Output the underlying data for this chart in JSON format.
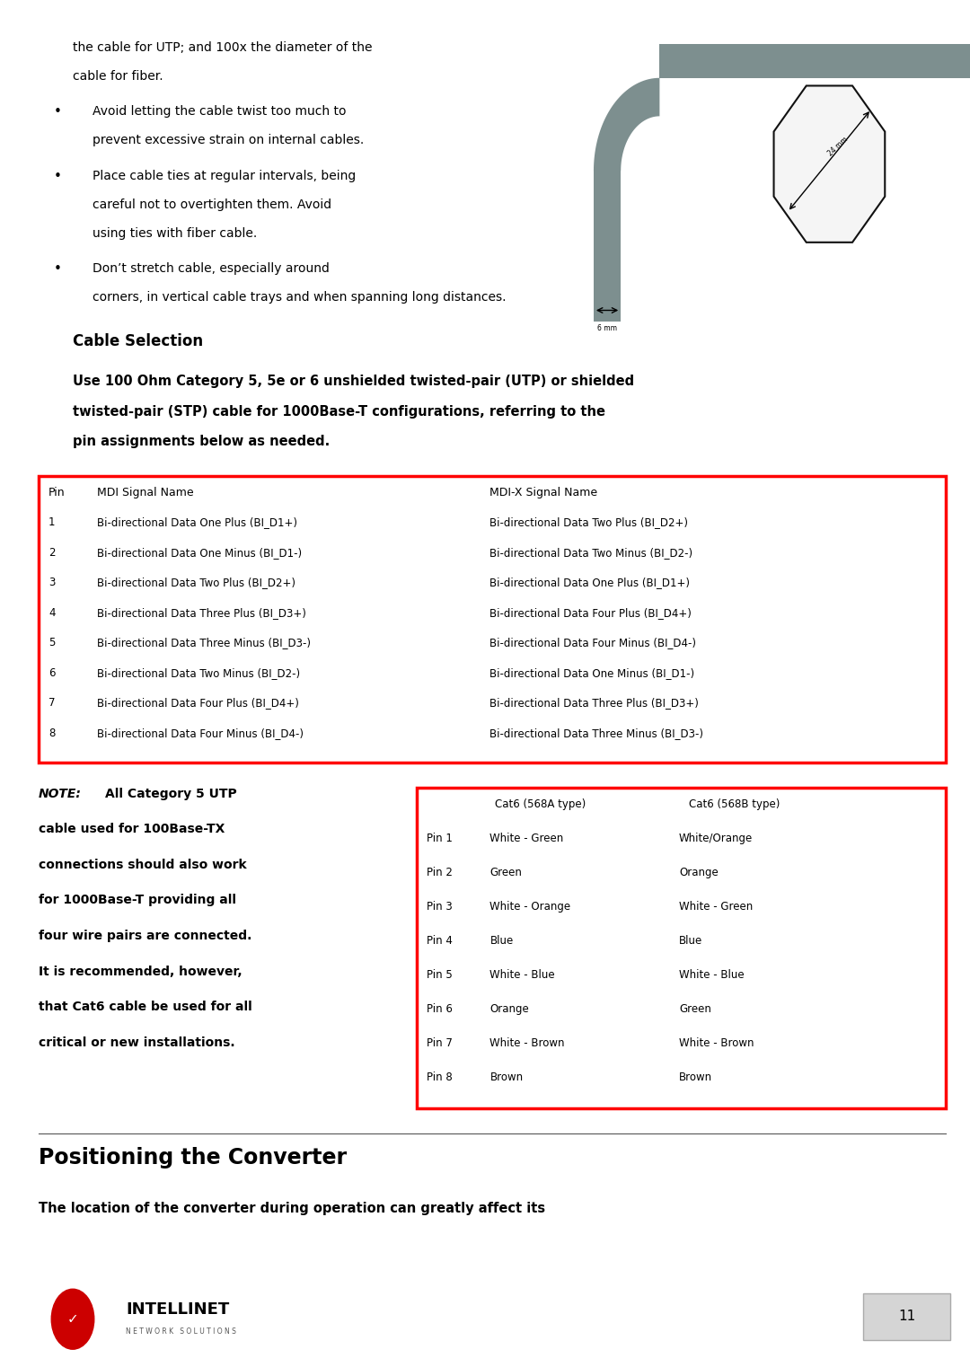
{
  "bg_color": "#ffffff",
  "page_width": 10.8,
  "page_height": 15.22,
  "top_text_line1": "the cable for UTP; and 100x the diameter of the",
  "top_text_line2": "cable for fiber.",
  "bullets": [
    [
      "Avoid letting the cable twist too much to",
      "prevent excessive strain on internal cables."
    ],
    [
      "Place cable ties at regular intervals, being",
      "careful not to overtighten them. Avoid",
      "using ties with fiber cable."
    ],
    [
      "Don’t stretch cable, especially around",
      "corners, in vertical cable trays and when spanning long distances."
    ]
  ],
  "cable_section_title": "Cable Selection",
  "cable_section_body_lines": [
    "Use 100 Ohm Category 5, 5e or 6 unshielded twisted-pair (UTP) or shielded",
    "twisted-pair (STP) cable for 1000Base-T configurations, referring to the",
    "pin assignments below as needed."
  ],
  "mdi_table_header": [
    "Pin",
    "MDI Signal Name",
    "MDI-X Signal Name"
  ],
  "mdi_table_rows": [
    [
      "1",
      "Bi-directional Data One Plus (BI_D1+)",
      "Bi-directional Data Two Plus (BI_D2+)"
    ],
    [
      "2",
      "Bi-directional Data One Minus (BI_D1-)",
      "Bi-directional Data Two Minus (BI_D2-)"
    ],
    [
      "3",
      "Bi-directional Data Two Plus (BI_D2+)",
      "Bi-directional Data One Plus (BI_D1+)"
    ],
    [
      "4",
      "Bi-directional Data Three Plus (BI_D3+)",
      "Bi-directional Data Four Plus (BI_D4+)"
    ],
    [
      "5",
      "Bi-directional Data Three Minus (BI_D3-)",
      "Bi-directional Data Four Minus (BI_D4-)"
    ],
    [
      "6",
      "Bi-directional Data Two Minus (BI_D2-)",
      "Bi-directional Data One Minus (BI_D1-)"
    ],
    [
      "7",
      "Bi-directional Data Four Plus (BI_D4+)",
      "Bi-directional Data Three Plus (BI_D3+)"
    ],
    [
      "8",
      "Bi-directional Data Four Minus (BI_D4-)",
      "Bi-directional Data Three Minus (BI_D3-)"
    ]
  ],
  "note_lines": [
    "All Category 5 UTP",
    "cable used for 100Base-TX",
    "connections should also work",
    "for 1000Base-T providing all",
    "four wire pairs are connected.",
    "It is recommended, however,",
    "that Cat6 cable be used for all",
    "critical or new installations."
  ],
  "cat6_header": [
    "Cat6 (568A type)",
    "Cat6 (568B type)"
  ],
  "cat6_rows": [
    [
      "Pin 1",
      "White - Green",
      "White/Orange"
    ],
    [
      "Pin 2",
      "Green",
      "Orange"
    ],
    [
      "Pin 3",
      "White - Orange",
      "White - Green"
    ],
    [
      "Pin 4",
      "Blue",
      "Blue"
    ],
    [
      "Pin 5",
      "White - Blue",
      "White - Blue"
    ],
    [
      "Pin 6",
      "Orange",
      "Green"
    ],
    [
      "Pin 7",
      "White - Brown",
      "White - Brown"
    ],
    [
      "Pin 8",
      "Brown",
      "Brown"
    ]
  ],
  "positioning_title": "Positioning the Converter",
  "positioning_body": "The location of the converter during operation can greatly affect its",
  "footer_page": "11",
  "red_border_color": "#ff0000",
  "cable_gray": "#7d8f8f",
  "intellinet_red": "#cc0000"
}
